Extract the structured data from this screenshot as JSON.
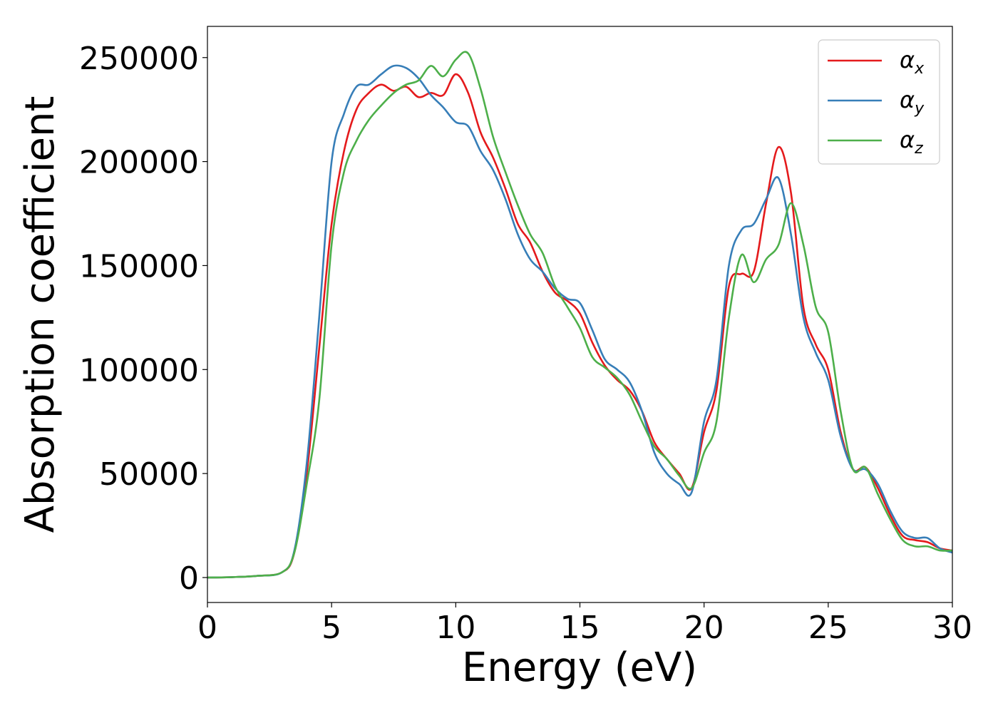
{
  "chart_data": {
    "type": "line",
    "title": "",
    "xlabel": "Energy (eV)",
    "ylabel": "Absorption coefficient",
    "xlim": [
      0,
      30
    ],
    "ylim": [
      -12000,
      265000
    ],
    "xticks": [
      0,
      5,
      10,
      15,
      20,
      25,
      30
    ],
    "yticks": [
      0,
      50000,
      100000,
      150000,
      200000,
      250000
    ],
    "xtick_labels": [
      "0",
      "5",
      "10",
      "15",
      "20",
      "25",
      "30"
    ],
    "ytick_labels": [
      "0",
      "50000",
      "100000",
      "150000",
      "200000",
      "250000"
    ],
    "grid": false,
    "legend_position": "top-right",
    "series": [
      {
        "name": "α_x",
        "symbol": "α",
        "subscript": "x",
        "color": "#e41a1c",
        "x": [
          0,
          1,
          2,
          3,
          3.5,
          4,
          4.5,
          5,
          5.5,
          6,
          6.5,
          7,
          7.5,
          8,
          8.5,
          9,
          9.5,
          10,
          10.5,
          11,
          11.5,
          12,
          12.5,
          13,
          13.5,
          14,
          14.5,
          15,
          15.5,
          16,
          16.5,
          17,
          17.5,
          18,
          18.5,
          19,
          19.5,
          20,
          20.5,
          21,
          21.5,
          22,
          22.5,
          23,
          23.5,
          24,
          24.5,
          25,
          25.5,
          26,
          26.5,
          27,
          27.5,
          28,
          28.5,
          29,
          29.5,
          30
        ],
        "y": [
          0,
          200,
          800,
          2500,
          12000,
          50000,
          110000,
          170000,
          205000,
          225000,
          233000,
          237000,
          234000,
          236000,
          231000,
          233000,
          232000,
          242000,
          233000,
          214000,
          202000,
          187000,
          170000,
          161000,
          147000,
          137000,
          133000,
          127000,
          113000,
          102000,
          95000,
          90000,
          80000,
          65000,
          57000,
          50000,
          43000,
          70000,
          90000,
          140000,
          146000,
          147000,
          180000,
          207000,
          185000,
          130000,
          112000,
          100000,
          70000,
          52000,
          53000,
          43000,
          30000,
          20000,
          18000,
          17000,
          14000,
          13000
        ]
      },
      {
        "name": "α_y",
        "symbol": "α",
        "subscript": "y",
        "color": "#377eb8",
        "x": [
          0,
          1,
          2,
          3,
          3.5,
          4,
          4.5,
          5,
          5.5,
          6,
          6.5,
          7,
          7.5,
          8,
          8.5,
          9,
          9.5,
          10,
          10.5,
          11,
          11.5,
          12,
          12.5,
          13,
          13.5,
          14,
          14.5,
          15,
          15.5,
          16,
          16.5,
          17,
          17.5,
          18,
          18.5,
          19,
          19.5,
          20,
          20.5,
          21,
          21.5,
          22,
          22.5,
          23,
          23.5,
          24,
          24.5,
          25,
          25.5,
          26,
          26.5,
          27,
          27.5,
          28,
          28.5,
          29,
          29.5,
          30
        ],
        "y": [
          0,
          200,
          800,
          2500,
          13000,
          55000,
          125000,
          200000,
          223000,
          236000,
          237000,
          242000,
          246000,
          245000,
          240000,
          232000,
          226000,
          219000,
          217000,
          205000,
          196000,
          182000,
          165000,
          153000,
          147000,
          139000,
          134000,
          132000,
          119000,
          105000,
          100000,
          94000,
          80000,
          60000,
          50000,
          45000,
          41000,
          75000,
          95000,
          150000,
          167000,
          170000,
          182000,
          192000,
          165000,
          125000,
          108000,
          95000,
          68000,
          52000,
          52000,
          45000,
          32000,
          22000,
          19000,
          19000,
          14000,
          12000
        ]
      },
      {
        "name": "α_z",
        "symbol": "α",
        "subscript": "z",
        "color": "#4daf4a",
        "x": [
          0,
          1,
          2,
          3,
          3.5,
          4,
          4.5,
          5,
          5.5,
          6,
          6.5,
          7,
          7.5,
          8,
          8.5,
          9,
          9.5,
          10,
          10.5,
          11,
          11.5,
          12,
          12.5,
          13,
          13.5,
          14,
          14.5,
          15,
          15.5,
          16,
          16.5,
          17,
          17.5,
          18,
          18.5,
          19,
          19.5,
          20,
          20.5,
          21,
          21.5,
          22,
          22.5,
          23,
          23.5,
          24,
          24.5,
          25,
          25.5,
          26,
          26.5,
          27,
          27.5,
          28,
          28.5,
          29,
          29.5,
          30
        ],
        "y": [
          0,
          200,
          800,
          2500,
          12000,
          45000,
          85000,
          160000,
          195000,
          210000,
          220000,
          227000,
          233000,
          237000,
          239000,
          246000,
          241000,
          249000,
          252000,
          235000,
          212000,
          195000,
          179000,
          165000,
          156000,
          140000,
          130000,
          120000,
          106000,
          101000,
          96000,
          88000,
          75000,
          63000,
          57000,
          49000,
          43000,
          60000,
          75000,
          125000,
          155000,
          142000,
          153000,
          160000,
          180000,
          160000,
          130000,
          118000,
          80000,
          52000,
          53000,
          40000,
          28000,
          18000,
          15000,
          15000,
          13000,
          13000
        ]
      }
    ]
  }
}
